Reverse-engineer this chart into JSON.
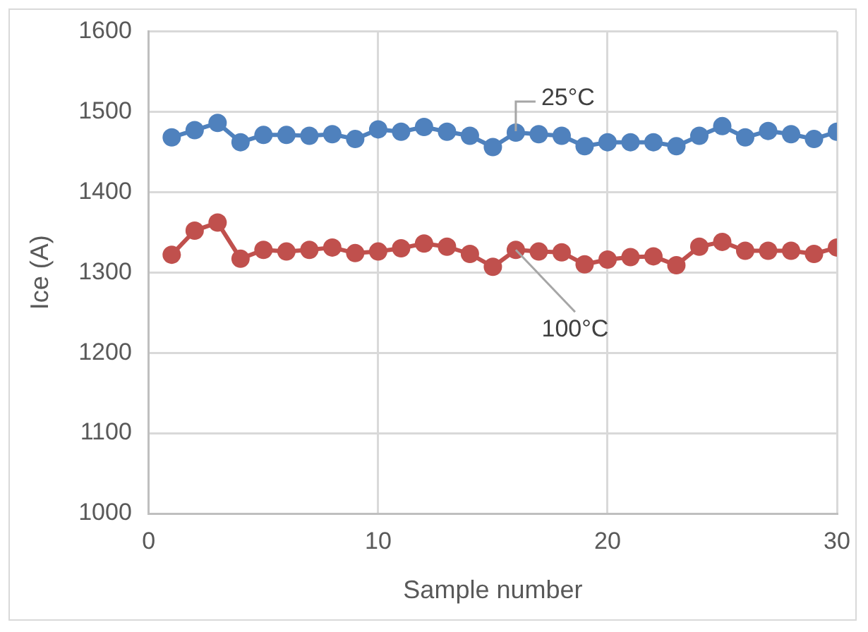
{
  "chart_data": {
    "type": "line",
    "xlabel": "Sample number",
    "ylabel": "Ice (A)",
    "x": [
      1,
      2,
      3,
      4,
      5,
      6,
      7,
      8,
      9,
      10,
      11,
      12,
      13,
      14,
      15,
      16,
      17,
      18,
      19,
      20,
      21,
      22,
      23,
      24,
      25,
      26,
      27,
      28,
      29,
      30
    ],
    "series": [
      {
        "color": "#4f81bd",
        "values": [
          1468,
          1477,
          1486,
          1462,
          1471,
          1471,
          1470,
          1472,
          1466,
          1478,
          1475,
          1481,
          1475,
          1470,
          1456,
          1474,
          1472,
          1470,
          1457,
          1462,
          1462,
          1462,
          1457,
          1470,
          1482,
          1468,
          1476,
          1472,
          1466,
          1475
        ]
      },
      {
        "color": "#c0504d",
        "values": [
          1322,
          1352,
          1362,
          1317,
          1328,
          1326,
          1328,
          1331,
          1324,
          1326,
          1330,
          1336,
          1332,
          1323,
          1307,
          1328,
          1326,
          1325,
          1310,
          1316,
          1319,
          1320,
          1309,
          1332,
          1338,
          1327,
          1327,
          1327,
          1323,
          1331
        ]
      }
    ],
    "xlim": [
      0,
      30
    ],
    "xticks": [
      0,
      10,
      20,
      30
    ],
    "ylim": [
      1000,
      1600
    ],
    "yticks": [
      1000,
      1100,
      1200,
      1300,
      1400,
      1500,
      1600
    ],
    "grid": true,
    "legend": false,
    "marker": "circle",
    "line_style": "solid",
    "annotations": [
      {
        "text": "25°C",
        "x": 16,
        "y": 1474
      },
      {
        "text": "100°C",
        "x": 16,
        "y": 1328
      }
    ]
  }
}
